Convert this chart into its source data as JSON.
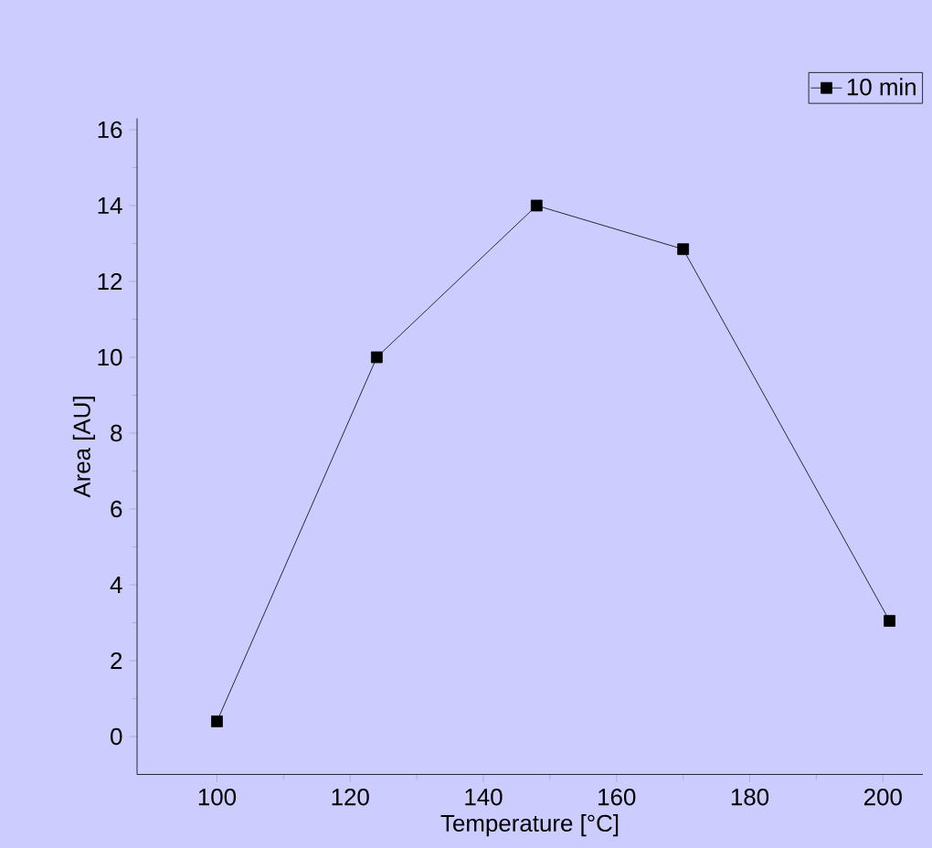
{
  "chart_data": {
    "type": "line",
    "xlabel": "Temperature [°C]",
    "ylabel": "Area [AU]",
    "x": [
      100,
      124,
      148,
      170,
      201
    ],
    "series": [
      {
        "name": "10 min",
        "color": "#000000",
        "values": [
          0.4,
          10.0,
          14.0,
          12.85,
          3.05
        ]
      }
    ],
    "xlim": [
      88,
      206
    ],
    "ylim": [
      -1,
      16.3
    ],
    "xticks": [
      100,
      120,
      140,
      160,
      180,
      200
    ],
    "yticks": [
      0,
      2,
      4,
      6,
      8,
      10,
      12,
      14,
      16
    ],
    "marker": "square",
    "line_style": "solid",
    "legend": "top right",
    "grid": false
  }
}
